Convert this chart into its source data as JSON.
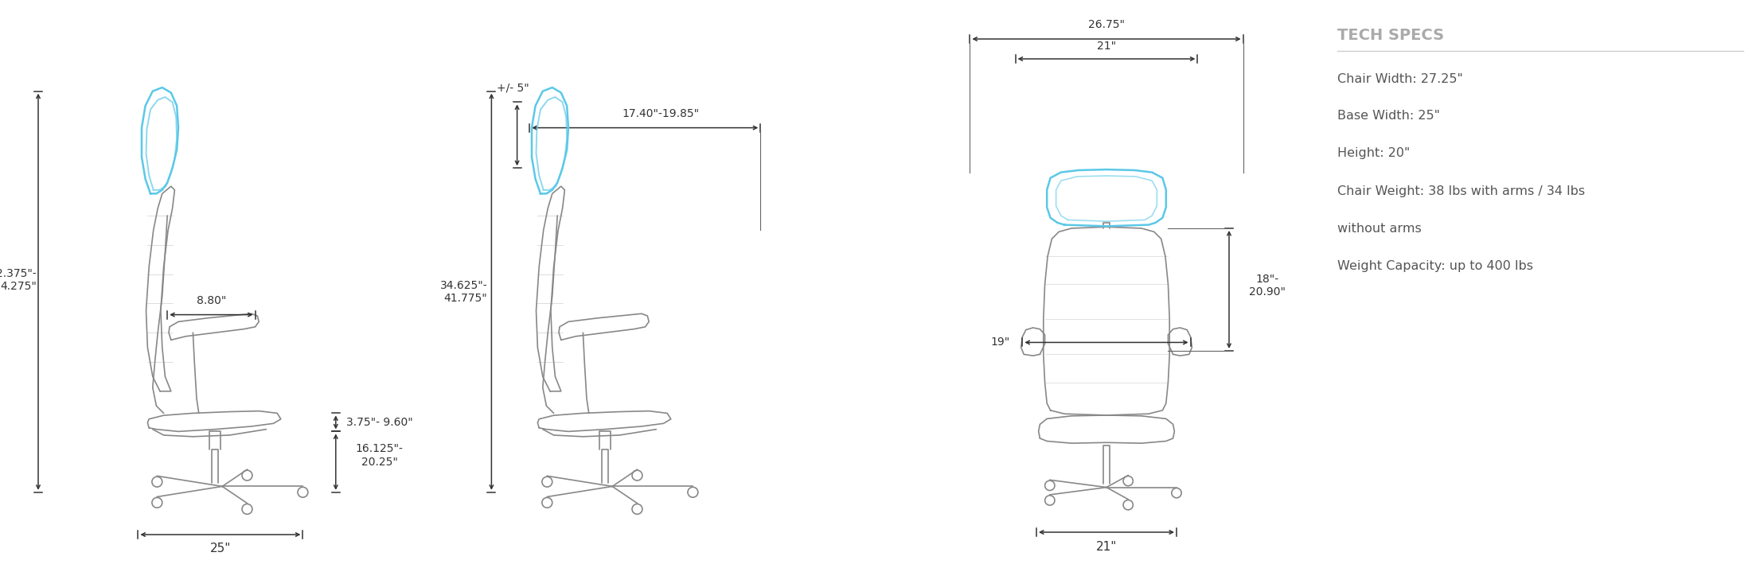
{
  "bg_color": "#ffffff",
  "dim_color": "#333333",
  "blue_color": "#5bc8e8",
  "gray_line_color": "#aaaaaa",
  "tech_title": "TECH SPECS",
  "tech_title_color": "#aaaaaa",
  "tech_text_color": "#555555",
  "tech_specs": [
    "Chair Width: 27.25\"",
    "Base Width: 25\"",
    "Height: 20\"",
    "Chair Weight: 38 lbs with arms / 34 lbs",
    "without arms",
    "Weight Capacity: up to 400 lbs"
  ],
  "v1_label_height": "2.375\"-\n4.275\"",
  "v1_label_arm": "8.80\"",
  "v1_label_seat_adj": "3.75\"- 9.60\"",
  "v1_label_seat_h": "16.125\"-\n20.25\"",
  "v1_label_base": "25\"",
  "v2_label_top": "+/- 5\"",
  "v2_label_depth": "17.40\"-19.85\"",
  "v2_label_total": "34.625\"-\n41.775\"",
  "v3_label_outer": "26.75\"",
  "v3_label_inner": "21\"",
  "v3_label_arm_w": "19\"",
  "v3_label_back_h": "18\"-\n20.90\"",
  "v3_label_base": "21\""
}
